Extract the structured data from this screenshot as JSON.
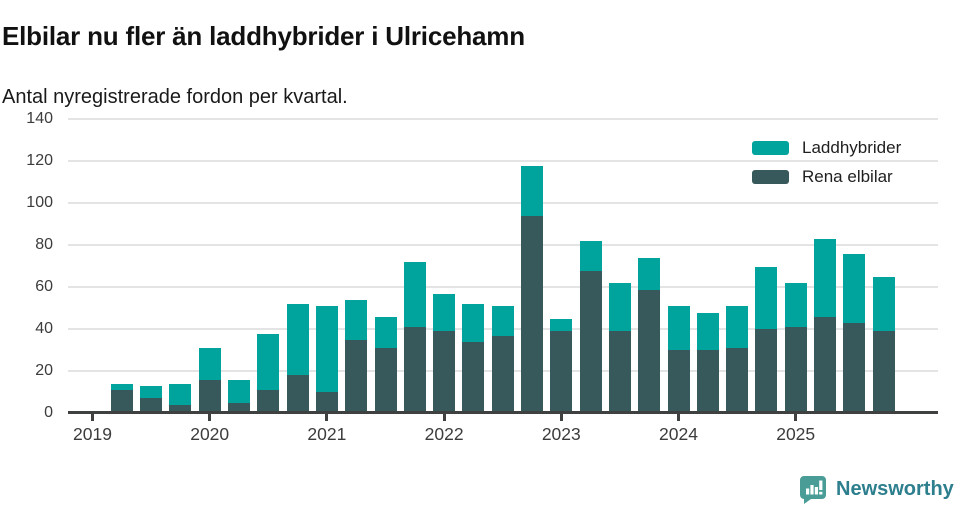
{
  "header": {
    "title": "Elbilar nu fler än laddhybrider i Ulricehamn",
    "subtitle": "Antal nyregistrerade fordon per kvartal."
  },
  "legend": [
    {
      "label": "Laddhybrider",
      "color": "#00a49c"
    },
    {
      "label": "Rena elbilar",
      "color": "#38595b"
    }
  ],
  "footer": {
    "brand": "Newsworthy",
    "brand_icon": "newsworthy-speech-bubble-barchart-icon"
  },
  "colors": {
    "laddhybrider": "#00a49c",
    "rena_elbilar": "#38595b",
    "grid": "#e4e4e4",
    "axis": "#3f4040",
    "tick_text": "#3c3c3c",
    "brand_text": "#2e7f8e",
    "brand_icon": "#4a9d97"
  },
  "chart_data": {
    "type": "bar",
    "stacked": true,
    "title": "Elbilar nu fler än laddhybrider i Ulricehamn",
    "subtitle": "Antal nyregistrerade fordon per kvartal.",
    "xlabel": "",
    "ylabel": "",
    "ylim": [
      0,
      140
    ],
    "yticks": [
      0,
      20,
      40,
      60,
      80,
      100,
      120,
      140
    ],
    "xticks": [
      "2019",
      "2020",
      "2021",
      "2022",
      "2023",
      "2024",
      "2025"
    ],
    "grid": true,
    "legend_position": "top-right",
    "x": [
      "2019 Q2",
      "2019 Q3",
      "2019 Q4",
      "2020 Q1",
      "2020 Q2",
      "2020 Q3",
      "2020 Q4",
      "2021 Q1",
      "2021 Q2",
      "2021 Q3",
      "2021 Q4",
      "2022 Q1",
      "2022 Q2",
      "2022 Q3",
      "2022 Q4",
      "2023 Q1",
      "2023 Q2",
      "2023 Q3",
      "2023 Q4",
      "2024 Q1",
      "2024 Q2",
      "2024 Q3",
      "2024 Q4",
      "2025 Q1",
      "2025 Q2",
      "2025 Q3",
      "2025 Q4"
    ],
    "series": [
      {
        "name": "Rena elbilar",
        "color": "#38595b",
        "stack_position": "bottom",
        "values": [
          10,
          6,
          3,
          15,
          4,
          10,
          17,
          9,
          34,
          30,
          40,
          38,
          33,
          36,
          93,
          38,
          67,
          38,
          58,
          29,
          29,
          30,
          39,
          40,
          45,
          42,
          38
        ]
      },
      {
        "name": "Laddhybrider",
        "color": "#00a49c",
        "stack_position": "top",
        "values": [
          3,
          6,
          10,
          15,
          11,
          27,
          34,
          41,
          19,
          15,
          31,
          18,
          18,
          14,
          24,
          6,
          14,
          23,
          15,
          21,
          18,
          20,
          30,
          21,
          37,
          33,
          26
        ]
      }
    ],
    "totals": [
      13,
      12,
      13,
      30,
      15,
      37,
      51,
      50,
      53,
      45,
      71,
      56,
      51,
      50,
      117,
      44,
      81,
      61,
      73,
      50,
      47,
      50,
      69,
      61,
      82,
      75,
      64
    ]
  }
}
